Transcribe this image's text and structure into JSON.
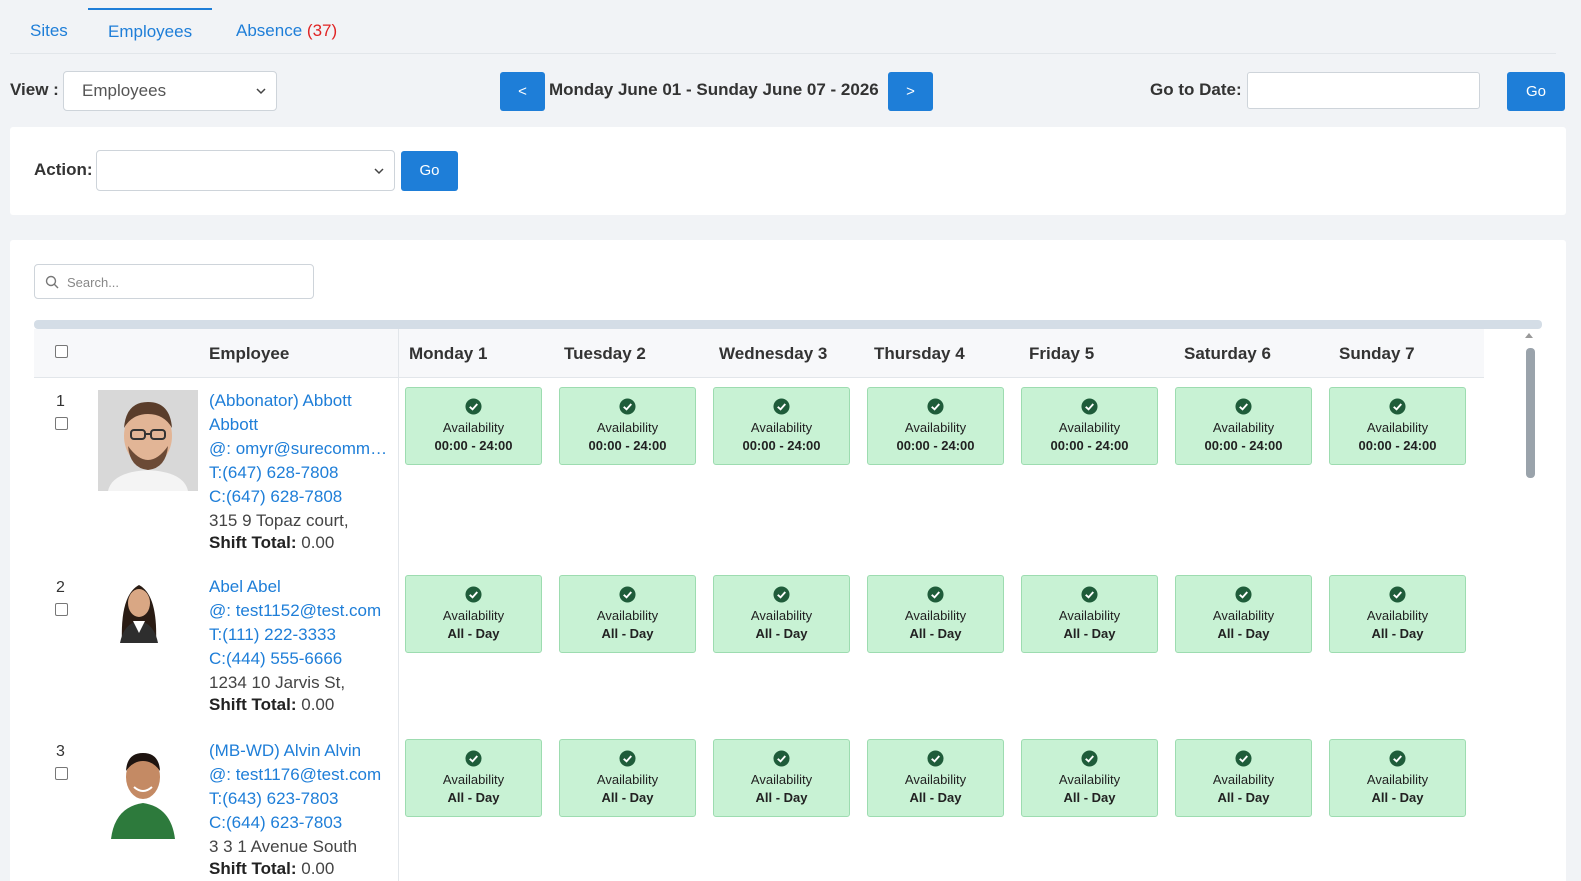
{
  "tabs": [
    {
      "label": "Sites",
      "count": ""
    },
    {
      "label": "Employees",
      "count": ""
    },
    {
      "label": "Absence",
      "count": "(37)"
    }
  ],
  "toolbar": {
    "view_label": "View :",
    "view_value": "Employees",
    "prev_label": "<",
    "next_label": ">",
    "date_range": "Monday June 01 - Sunday June 07 - 2026",
    "goto_label": "Go to Date:",
    "goto_value": "",
    "go_label": "Go"
  },
  "action": {
    "label": "Action:",
    "value": "",
    "go_label": "Go"
  },
  "search": {
    "placeholder": "Search..."
  },
  "table": {
    "employee_header": "Employee",
    "days": [
      "Monday 1",
      "Tuesday 2",
      "Wednesday 3",
      "Thursday 4",
      "Friday 5",
      "Saturday 6",
      "Sunday 7"
    ],
    "rows": [
      {
        "num": "1",
        "name_line1": "(Abbonator) Abbott",
        "name_line2": "Abbott",
        "email": "@: omyr@surecommunications.com",
        "phone": "T:(647) 628-7808",
        "cell": "C:(647) 628-7808",
        "address": "315 9 Topaz court,",
        "shift_label": "Shift Total:",
        "shift_value": "0.00",
        "avail_title": "Availability",
        "avail_time": "00:00 - 24:00"
      },
      {
        "num": "2",
        "name_line1": "Abel Abel",
        "name_line2": "",
        "email": "@: test1152@test.com",
        "phone": "T:(111) 222-3333",
        "cell": "C:(444) 555-6666",
        "address": "1234 10 Jarvis St,",
        "shift_label": "Shift Total:",
        "shift_value": "0.00",
        "avail_title": "Availability",
        "avail_time": "All - Day"
      },
      {
        "num": "3",
        "name_line1": "(MB-WD) Alvin Alvin",
        "name_line2": "",
        "email": "@: test1176@test.com",
        "phone": "T:(643) 623-7803",
        "cell": "C:(644) 623-7803",
        "address": "3 3 1 Avenue South",
        "shift_label": "Shift Total:",
        "shift_value": "0.00",
        "avail_title": "Availability",
        "avail_time": "All - Day"
      }
    ]
  },
  "colors": {
    "accent": "#1e7ed8",
    "badge_red": "#e02424",
    "availability_bg": "#c8f2d4",
    "check_icon": "#1f5c3a"
  },
  "icons": [
    "search-icon",
    "chevron-down-icon",
    "check-circle-icon",
    "avatar"
  ]
}
